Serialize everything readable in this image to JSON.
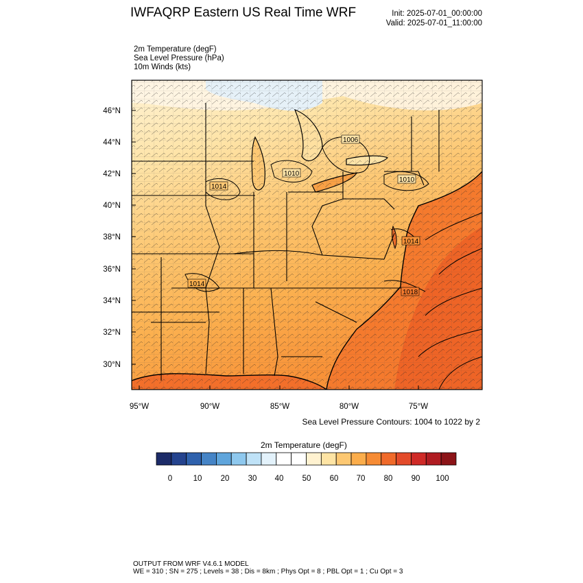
{
  "header": {
    "title": "IWFAQRP Eastern US Real Time WRF",
    "init": "Init: 2025-07-01_00:00:00",
    "valid": "Valid: 2025-07-01_11:00:00"
  },
  "fields": [
    "2m Temperature   (degF)",
    "Sea Level Pressure   (hPa)",
    "10m Winds   (kts)"
  ],
  "map": {
    "lat_labels": [
      "46°N",
      "44°N",
      "42°N",
      "40°N",
      "38°N",
      "36°N",
      "34°N",
      "32°N",
      "30°N"
    ],
    "lon_labels": [
      "95°W",
      "90°W",
      "85°W",
      "80°W",
      "75°W"
    ],
    "pressure_labels": [
      "1006",
      "1010",
      "1014",
      "1010",
      "1014",
      "1014",
      "1018"
    ],
    "contour_note": "Sea Level Pressure Contours: 1004 to 1022 by 2"
  },
  "colorbar": {
    "title": "2m Temperature  (degF)",
    "ticks": [
      "0",
      "10",
      "20",
      "30",
      "40",
      "50",
      "60",
      "70",
      "80",
      "90",
      "100"
    ],
    "colors": [
      "#1c2b68",
      "#24438e",
      "#2f62ad",
      "#4584c6",
      "#5fa5dc",
      "#8ec8ee",
      "#bfe2f7",
      "#e3f2fb",
      "#ffffff",
      "#ffffff",
      "#fff2d0",
      "#fee4a4",
      "#fdc872",
      "#fbad4b",
      "#f68b34",
      "#f06a2a",
      "#e34b2a",
      "#cf2a27",
      "#b01c22",
      "#8c1418"
    ]
  },
  "footer": {
    "line1": "OUTPUT FROM WRF V4.6.1 MODEL",
    "line2": "WE = 310 ; SN = 275 ; Levels = 38 ; Dis = 8km ; Phys Opt = 8 ; PBL Opt = 1 ; Cu Opt = 3"
  }
}
